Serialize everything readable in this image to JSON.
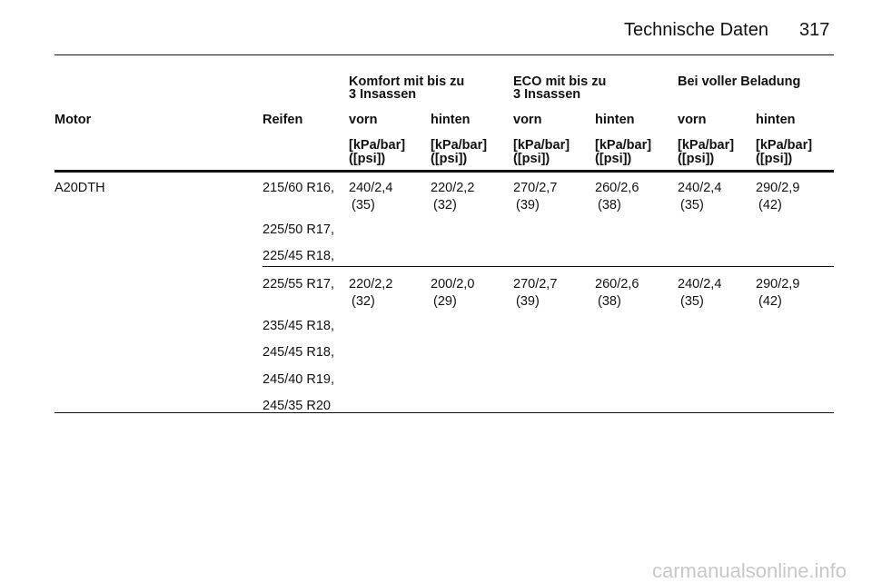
{
  "header": {
    "title": "Technische Daten",
    "page": "317"
  },
  "table": {
    "group_headers": [
      [
        "Komfort mit bis zu",
        "3 Insassen"
      ],
      [
        "ECO mit bis zu",
        "3 Insassen"
      ],
      [
        "Bei voller Beladung"
      ]
    ],
    "column_headers": [
      "Motor",
      "Reifen",
      "vorn",
      "hinten",
      "vorn",
      "hinten",
      "vorn",
      "hinten"
    ],
    "units": [
      [
        "[kPa/bar]",
        "([psi])"
      ],
      [
        "[kPa/bar]",
        "([psi])"
      ],
      [
        "[kPa/bar]",
        "([psi])"
      ],
      [
        "[kPa/bar]",
        "([psi])"
      ],
      [
        "[kPa/bar]",
        "([psi])"
      ],
      [
        "[kPa/bar]",
        "([psi])"
      ]
    ],
    "rows": [
      {
        "motor": "A20DTH",
        "tyres": [
          "215/60 R16,",
          "225/50 R17,",
          "225/45 R18,"
        ],
        "values": [
          [
            "240/2,4",
            "(35)"
          ],
          [
            "220/2,2",
            "(32)"
          ],
          [
            "270/2,7",
            "(39)"
          ],
          [
            "260/2,6",
            "(38)"
          ],
          [
            "240/2,4",
            "(35)"
          ],
          [
            "290/2,9",
            "(42)"
          ]
        ]
      },
      {
        "motor": null,
        "tyres": [
          "225/55 R17,",
          "235/45 R18,",
          "245/45 R18,",
          "245/40 R19,",
          "245/35 R20"
        ],
        "values": [
          [
            "220/2,2",
            "(32)"
          ],
          [
            "200/2,0",
            "(29)"
          ],
          [
            "270/2,7",
            "(39)"
          ],
          [
            "260/2,6",
            "(38)"
          ],
          [
            "240/2,4",
            "(35)"
          ],
          [
            "290/2,9",
            "(42)"
          ]
        ]
      }
    ]
  },
  "watermark": "carmanualsonline.info"
}
